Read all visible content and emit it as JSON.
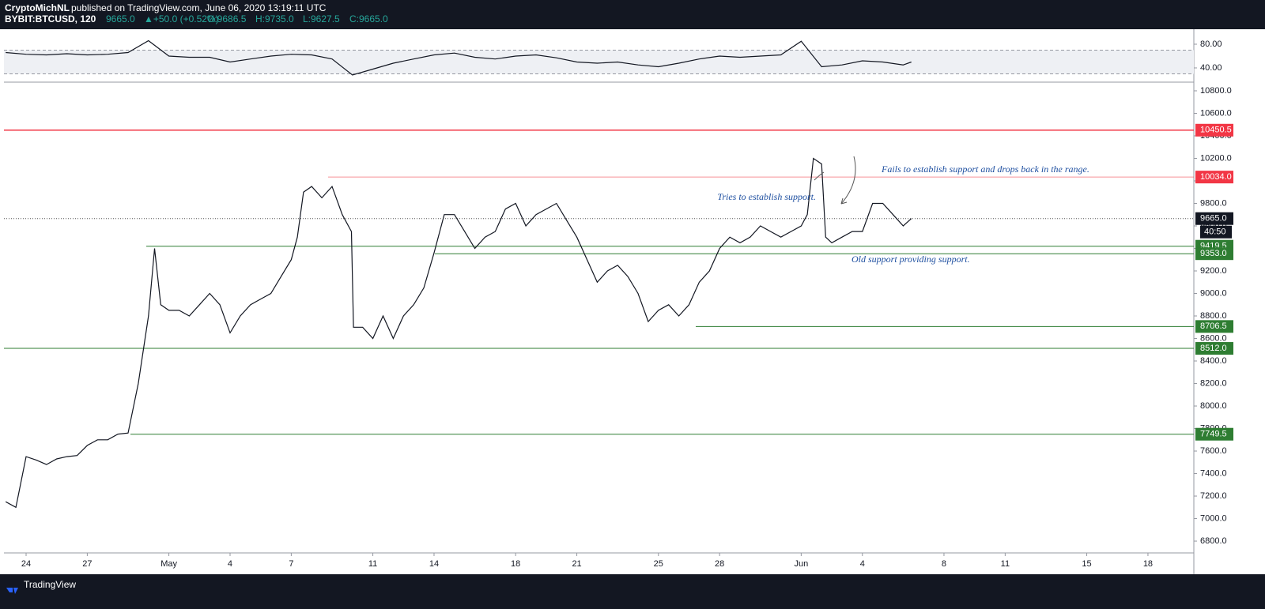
{
  "header": {
    "author": "CryptoMichNL",
    "published": "published on TradingView.com, June 06, 2020 13:19:11 UTC",
    "symbol": "BYBIT:BTCUSD, 120",
    "last": "9665.0",
    "change": "▲+50.0 (+0.52%)",
    "ohlc": [
      "O:9686.5",
      "H:9735.0",
      "L:9627.5",
      "C:9665.0"
    ]
  },
  "footer": {
    "brand": "TradingView"
  },
  "chart_data": [
    {
      "type": "line",
      "color": "#131722",
      "x": [
        -1,
        0,
        1,
        2,
        3,
        4,
        5,
        6,
        7,
        8,
        9,
        10,
        11,
        12,
        13,
        14,
        15,
        16,
        17,
        18,
        19,
        20,
        21,
        22,
        23,
        24,
        25,
        26,
        27,
        28,
        29,
        30,
        31,
        32,
        33,
        34,
        35,
        36,
        37,
        38,
        39,
        40,
        41,
        42,
        43,
        43.4
      ],
      "values": [
        66,
        63,
        62,
        64,
        62,
        63,
        66,
        86,
        60,
        58,
        58,
        50,
        55,
        60,
        63,
        62,
        55,
        28,
        38,
        48,
        55,
        62,
        65,
        58,
        55,
        60,
        62,
        57,
        50,
        48,
        50,
        45,
        42,
        48,
        55,
        60,
        58,
        60,
        62,
        85,
        42,
        45,
        52,
        50,
        45,
        50
      ],
      "band": [
        30,
        70
      ],
      "band_color": "#eef0f4",
      "ylim": [
        17.3,
        105.3
      ],
      "yticks": [
        {
          "value": 80,
          "label": "80.00"
        },
        {
          "value": 40,
          "label": "40.00"
        }
      ]
    },
    {
      "type": "line",
      "color": "#131722",
      "x": [
        -1,
        -0.5,
        0,
        0.5,
        1,
        1.5,
        2,
        2.5,
        3,
        3.5,
        4,
        4.5,
        5,
        5.5,
        6,
        6.3,
        6.6,
        7,
        7.5,
        8,
        8.5,
        9,
        9.5,
        10,
        10.5,
        11,
        11.5,
        12,
        12.5,
        13,
        13.3,
        13.6,
        14,
        14.5,
        15,
        15.5,
        15.95,
        16.05,
        16.5,
        17,
        17.5,
        18,
        18.5,
        19,
        19.5,
        20,
        20.5,
        21,
        21.5,
        22,
        22.5,
        23,
        23.5,
        24,
        24.5,
        25,
        25.5,
        26,
        26.5,
        27,
        27.5,
        28,
        28.5,
        29,
        29.5,
        30,
        30.5,
        31,
        31.5,
        32,
        32.5,
        33,
        33.5,
        34,
        34.5,
        35,
        35.5,
        36,
        36.5,
        37,
        37.5,
        38,
        38.3,
        38.6,
        39,
        39.2,
        39.5,
        40,
        40.5,
        41,
        41.5,
        42,
        42.5,
        43,
        43.4
      ],
      "values": [
        7150,
        7100,
        7550,
        7520,
        7480,
        7530,
        7550,
        7560,
        7650,
        7700,
        7700,
        7750,
        7760,
        8200,
        8800,
        9400,
        8900,
        8850,
        8850,
        8800,
        8900,
        9000,
        8900,
        8650,
        8800,
        8900,
        8950,
        9000,
        9150,
        9300,
        9500,
        9900,
        9950,
        9850,
        9950,
        9700,
        9550,
        8700,
        8700,
        8600,
        8800,
        8600,
        8800,
        8900,
        9050,
        9360,
        9700,
        9700,
        9550,
        9400,
        9500,
        9550,
        9750,
        9800,
        9600,
        9700,
        9750,
        9800,
        9650,
        9500,
        9300,
        9100,
        9200,
        9250,
        9150,
        9000,
        8750,
        8850,
        8900,
        8800,
        8900,
        9100,
        9200,
        9400,
        9500,
        9450,
        9500,
        9600,
        9550,
        9500,
        9550,
        9600,
        9700,
        10200,
        10150,
        9500,
        9450,
        9500,
        9550,
        9550,
        9800,
        9800,
        9700,
        9600,
        9665
      ],
      "xlim": [
        -1.085,
        57.25
      ],
      "xticks": [
        {
          "value": 0,
          "label": "24"
        },
        {
          "value": 3,
          "label": "27"
        },
        {
          "value": 7,
          "label": "May"
        },
        {
          "value": 10,
          "label": "4"
        },
        {
          "value": 13,
          "label": "7"
        },
        {
          "value": 17,
          "label": "11"
        },
        {
          "value": 20,
          "label": "14"
        },
        {
          "value": 24,
          "label": "18"
        },
        {
          "value": 27,
          "label": "21"
        },
        {
          "value": 31,
          "label": "25"
        },
        {
          "value": 34,
          "label": "28"
        },
        {
          "value": 38,
          "label": "Jun"
        },
        {
          "value": 41,
          "label": "4"
        },
        {
          "value": 45,
          "label": "8"
        },
        {
          "value": 48,
          "label": "11"
        },
        {
          "value": 52,
          "label": "15"
        },
        {
          "value": 55,
          "label": "18"
        }
      ],
      "ylim": [
        6695,
        10870
      ],
      "yticks": [
        {
          "value": 6800,
          "label": "6800.0"
        },
        {
          "value": 7000,
          "label": "7000.0"
        },
        {
          "value": 7200,
          "label": "7200.0"
        },
        {
          "value": 7400,
          "label": "7400.0"
        },
        {
          "value": 7600,
          "label": "7600.0"
        },
        {
          "value": 7800,
          "label": "7800.0"
        },
        {
          "value": 8000,
          "label": "8000.0"
        },
        {
          "value": 8200,
          "label": "8200.0"
        },
        {
          "value": 8400,
          "label": "8400.0"
        },
        {
          "value": 8600,
          "label": "8600.0"
        },
        {
          "value": 8800,
          "label": "8800.0"
        },
        {
          "value": 9000,
          "label": "9000.0"
        },
        {
          "value": 9200,
          "label": "9200.0"
        },
        {
          "value": 9400,
          "label": "9400.0"
        },
        {
          "value": 9600,
          "label": "9600.0"
        },
        {
          "value": 9800,
          "label": "9800.0"
        },
        {
          "value": 10000,
          "label": "10000.0"
        },
        {
          "value": 10200,
          "label": "10200.0"
        },
        {
          "value": 10400,
          "label": "10400.0"
        },
        {
          "value": 10600,
          "label": "10600.0"
        },
        {
          "value": 10800,
          "label": "10800.0"
        }
      ],
      "levels": {
        "values": [
          10450.5,
          10034,
          9419.5,
          9353,
          8706.5,
          8512,
          7749.5
        ],
        "value_labels": [
          "10450.5",
          "10034.0",
          "9419.5",
          "9353.0",
          "8706.5",
          "8512.0",
          "7749.5"
        ],
        "colors": [
          "#f23645",
          "#f23645",
          "#2e7d32",
          "#2e7d32",
          "#2e7d32",
          "#2e7d32",
          "#2e7d32"
        ]
      },
      "current": {
        "value": 9665,
        "label": "9665.0",
        "countdown": "40:50"
      },
      "annotations": [
        "Tries to establish support.",
        "Fails to establish support and drops back in the range.",
        "Old support providing support."
      ]
    }
  ]
}
